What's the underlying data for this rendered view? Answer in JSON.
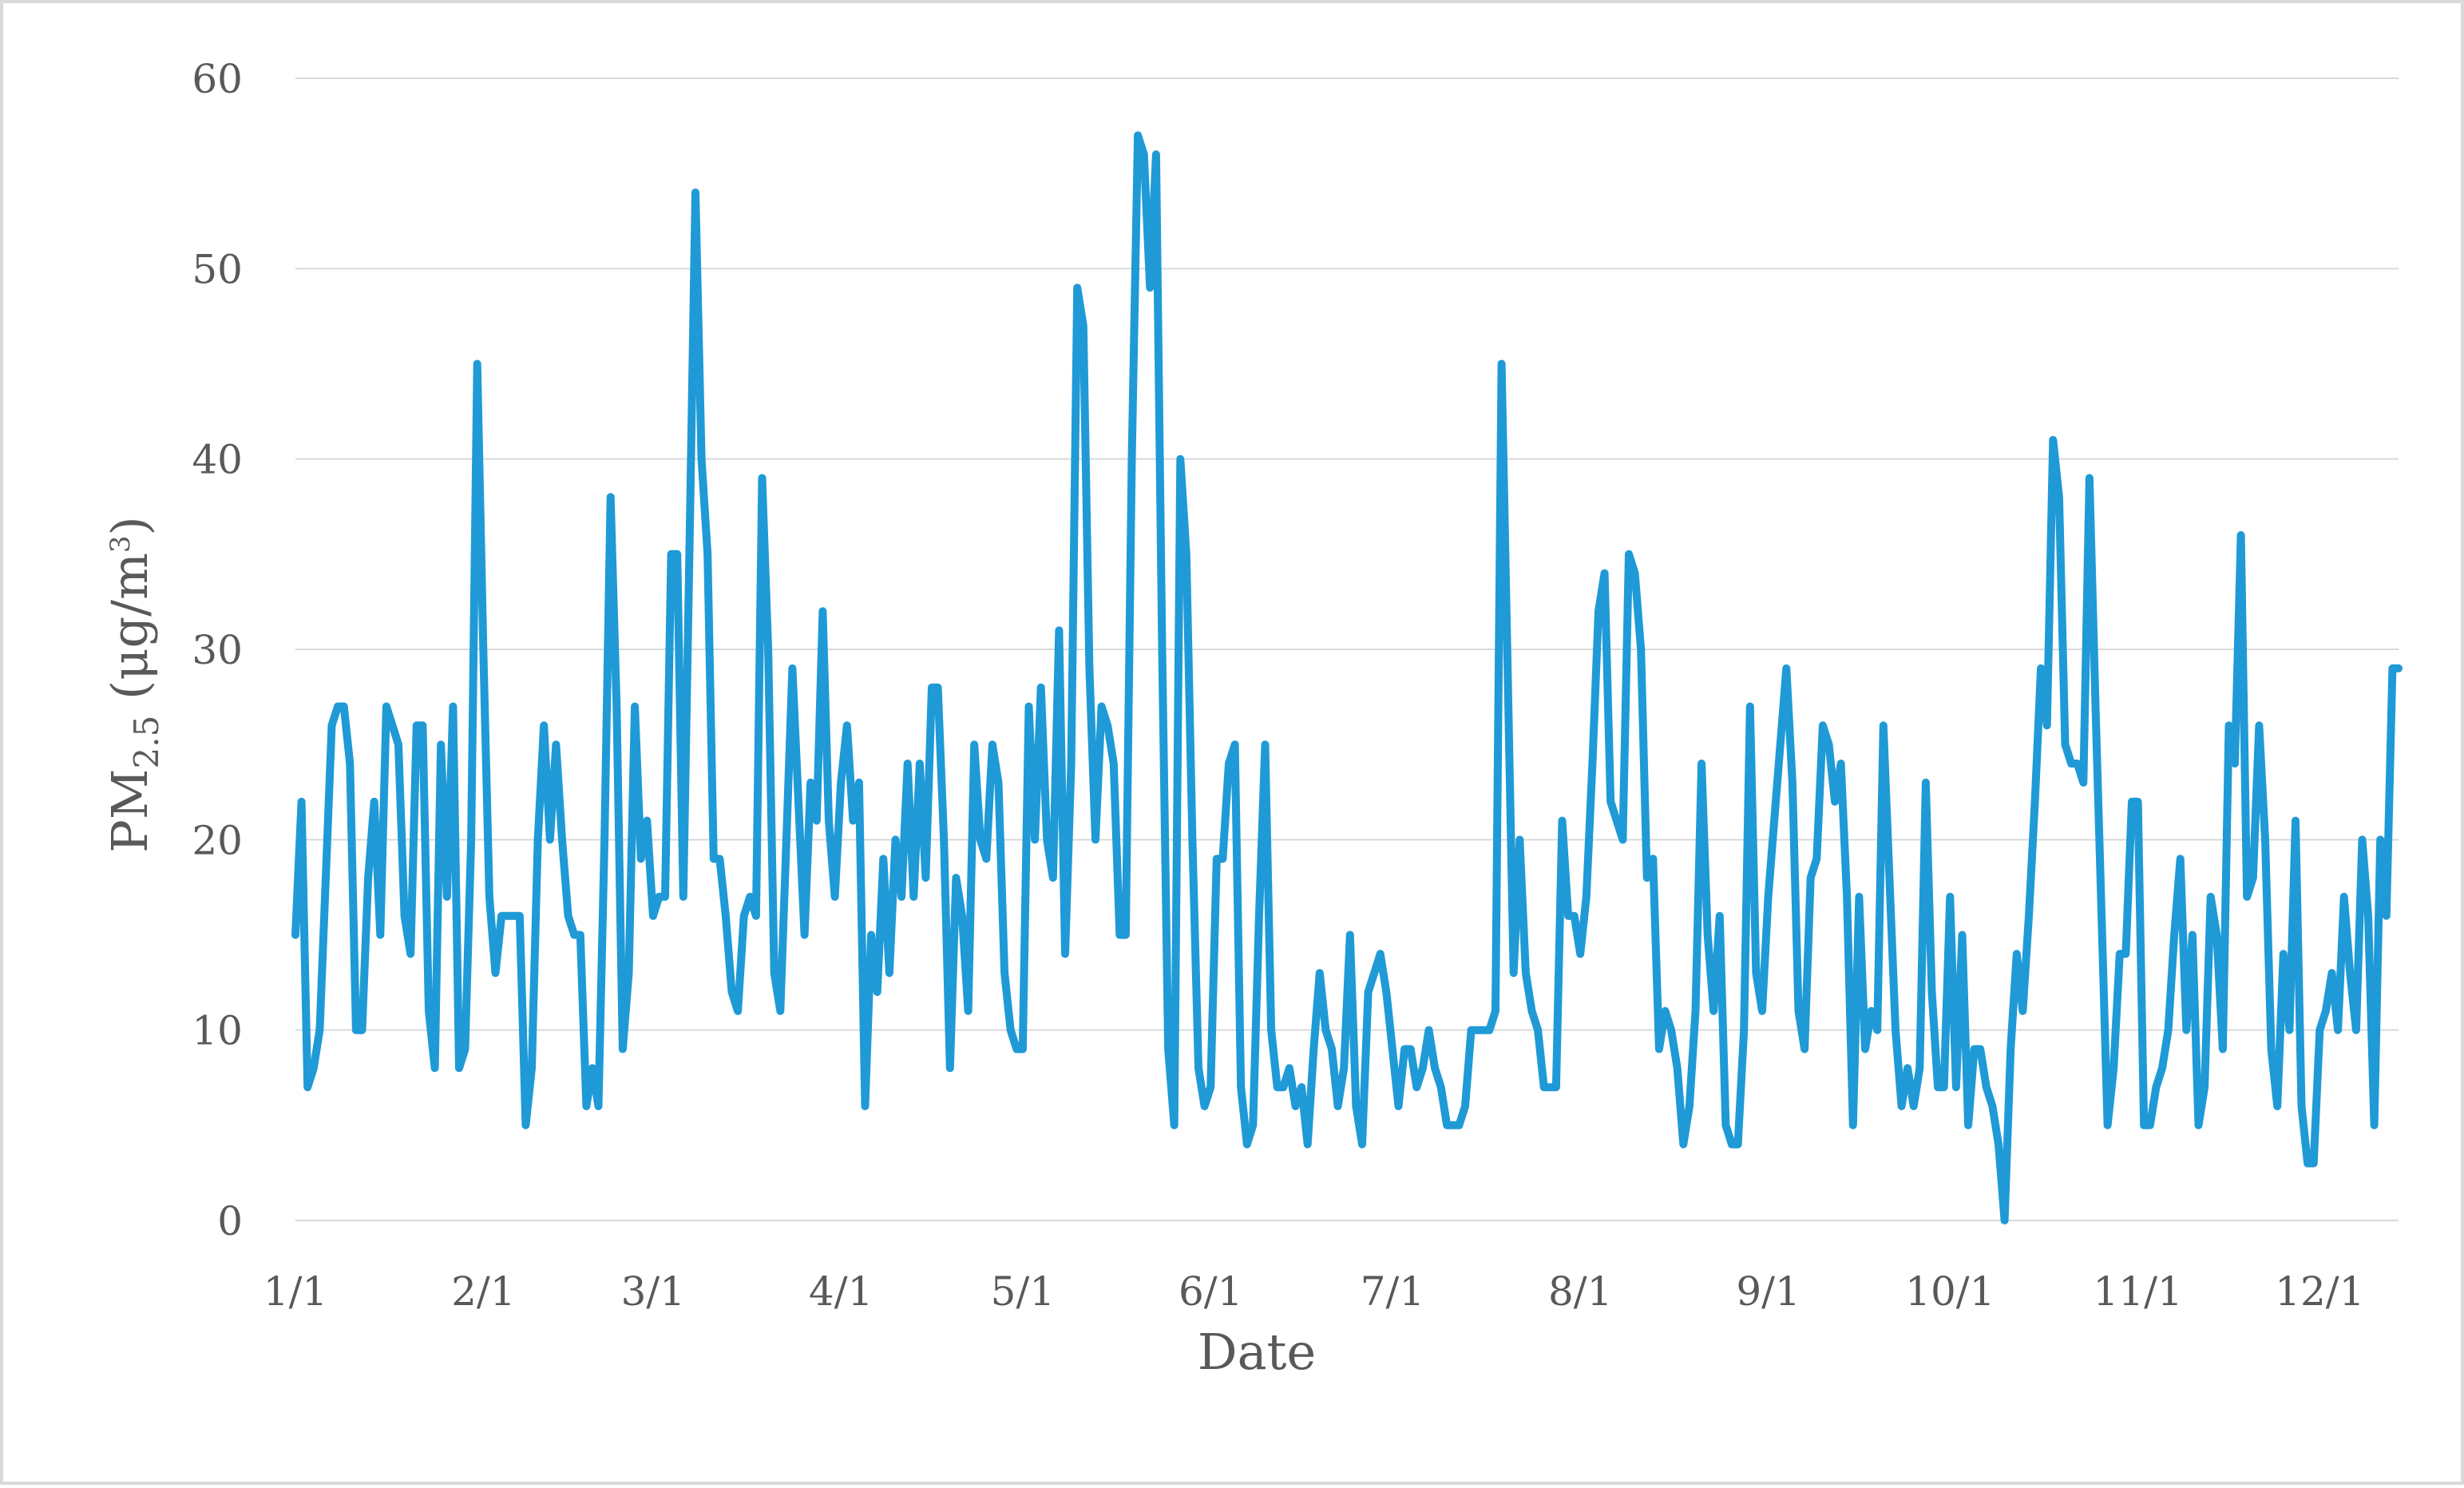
{
  "chart_data": {
    "type": "line",
    "title": "",
    "xlabel": "Date",
    "ylabel": {
      "base": "PM",
      "subscript": "2.5",
      "unit_prefix": " (μg/m",
      "superscript": "3",
      "unit_suffix": ")"
    },
    "ylim": [
      0,
      60
    ],
    "y_ticks": [
      "0",
      "10",
      "20",
      "30",
      "40",
      "50",
      "60"
    ],
    "x_tick_labels": [
      "1/1",
      "2/1",
      "3/1",
      "4/1",
      "5/1",
      "6/1",
      "7/1",
      "8/1",
      "9/1",
      "10/1",
      "11/1",
      "12/1"
    ],
    "grid": "horizontal",
    "legend": "none",
    "colors": {
      "line": "#1f9ad6",
      "grid": "#d9d9d9",
      "text": "#595959",
      "border": "#d9d9d9"
    },
    "series": [
      {
        "values": [
          15,
          22,
          7,
          8,
          10,
          18,
          26,
          27,
          27,
          24,
          10,
          10,
          18,
          22,
          15,
          27,
          26,
          25,
          16,
          14,
          26,
          26,
          11,
          8,
          25,
          17,
          27,
          8,
          9,
          20,
          45,
          30,
          17,
          13,
          16,
          16,
          16,
          16,
          5,
          8,
          20,
          26,
          20,
          25,
          20,
          16,
          15,
          15,
          6,
          8,
          6,
          20,
          38,
          27,
          9,
          13,
          27,
          19,
          21,
          16,
          17,
          17,
          35,
          35,
          17,
          35,
          54,
          40,
          35,
          19,
          19,
          16,
          12,
          11,
          16,
          17,
          16,
          39,
          30,
          13,
          11,
          20,
          29,
          22,
          15,
          23,
          21,
          32,
          21,
          17,
          23,
          26,
          21,
          23,
          6,
          15,
          12,
          19,
          13,
          20,
          17,
          24,
          17,
          24,
          18,
          28,
          28,
          20,
          8,
          18,
          16,
          11,
          25,
          20,
          19,
          25,
          23,
          13,
          10,
          9,
          9,
          27,
          20,
          28,
          20,
          18,
          31,
          14,
          24,
          49,
          47,
          29,
          20,
          27,
          26,
          24,
          15,
          15,
          40,
          57,
          56,
          49,
          56,
          30,
          9,
          5,
          40,
          35,
          20,
          8,
          6,
          7,
          19,
          19,
          24,
          25,
          7,
          4,
          5,
          16,
          25,
          10,
          7,
          7,
          8,
          6,
          7,
          4,
          9,
          13,
          10,
          9,
          6,
          8,
          15,
          6,
          4,
          12,
          13,
          14,
          12,
          9,
          6,
          9,
          9,
          7,
          8,
          10,
          8,
          7,
          5,
          5,
          5,
          6,
          10,
          10,
          10,
          10,
          11,
          45,
          29,
          13,
          20,
          13,
          11,
          10,
          7,
          7,
          7,
          21,
          16,
          16,
          14,
          17,
          24,
          32,
          34,
          22,
          21,
          20,
          35,
          34,
          30,
          18,
          19,
          9,
          11,
          10,
          8,
          4,
          6,
          11,
          24,
          15,
          11,
          16,
          5,
          4,
          4,
          10,
          27,
          13,
          11,
          17,
          21,
          25,
          29,
          23,
          11,
          9,
          18,
          19,
          26,
          25,
          22,
          24,
          17,
          5,
          17,
          9,
          11,
          10,
          26,
          18,
          10,
          6,
          8,
          6,
          8,
          23,
          12,
          7,
          7,
          17,
          7,
          15,
          5,
          9,
          9,
          7,
          6,
          4,
          0,
          9,
          14,
          11,
          16,
          22,
          29,
          26,
          41,
          38,
          25,
          24,
          24,
          23,
          39,
          27,
          16,
          5,
          8,
          14,
          14,
          22,
          22,
          5,
          5,
          7,
          8,
          10,
          15,
          19,
          10,
          15,
          5,
          7,
          17,
          15,
          9,
          26,
          24,
          36,
          17,
          18,
          26,
          20,
          9,
          6,
          14,
          10,
          21,
          6,
          3,
          3,
          10,
          11,
          13,
          10,
          17,
          13,
          10,
          20,
          16,
          5,
          20,
          16,
          29,
          29
        ]
      }
    ]
  }
}
